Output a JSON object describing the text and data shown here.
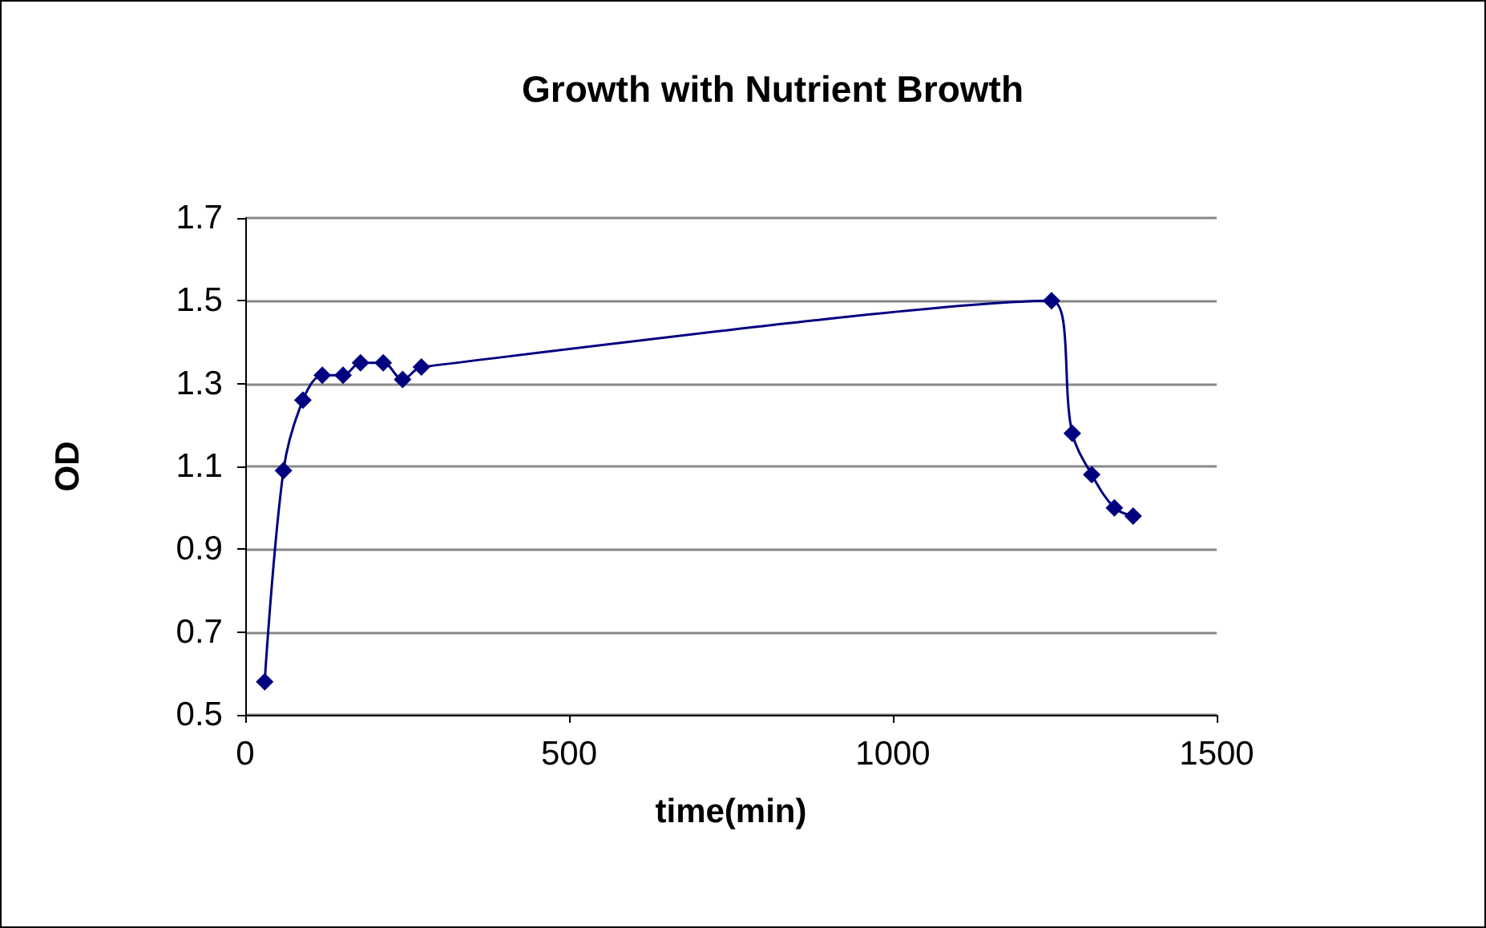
{
  "chart_data": {
    "type": "line",
    "title": "Growth with Nutrient Browth",
    "xlabel": "time(min)",
    "ylabel": "OD",
    "x": [
      30,
      59,
      89,
      119,
      151,
      178,
      213,
      243,
      272,
      1245,
      1277,
      1307,
      1342,
      1371
    ],
    "series": [
      {
        "color": "#000080",
        "values": [
          0.58,
          1.09,
          1.26,
          1.32,
          1.32,
          1.35,
          1.35,
          1.31,
          1.34,
          1.5,
          1.18,
          1.08,
          1.0,
          0.98
        ]
      }
    ],
    "xlim": [
      0,
      1500
    ],
    "xticks": [
      0,
      500,
      1000,
      1500
    ],
    "ylim": [
      0.5,
      1.7
    ],
    "yticks": [
      0.5,
      0.7,
      0.9,
      1.1,
      1.3,
      1.5,
      1.7
    ],
    "grid": "y",
    "marker": "diamond",
    "line_style": "solid"
  }
}
